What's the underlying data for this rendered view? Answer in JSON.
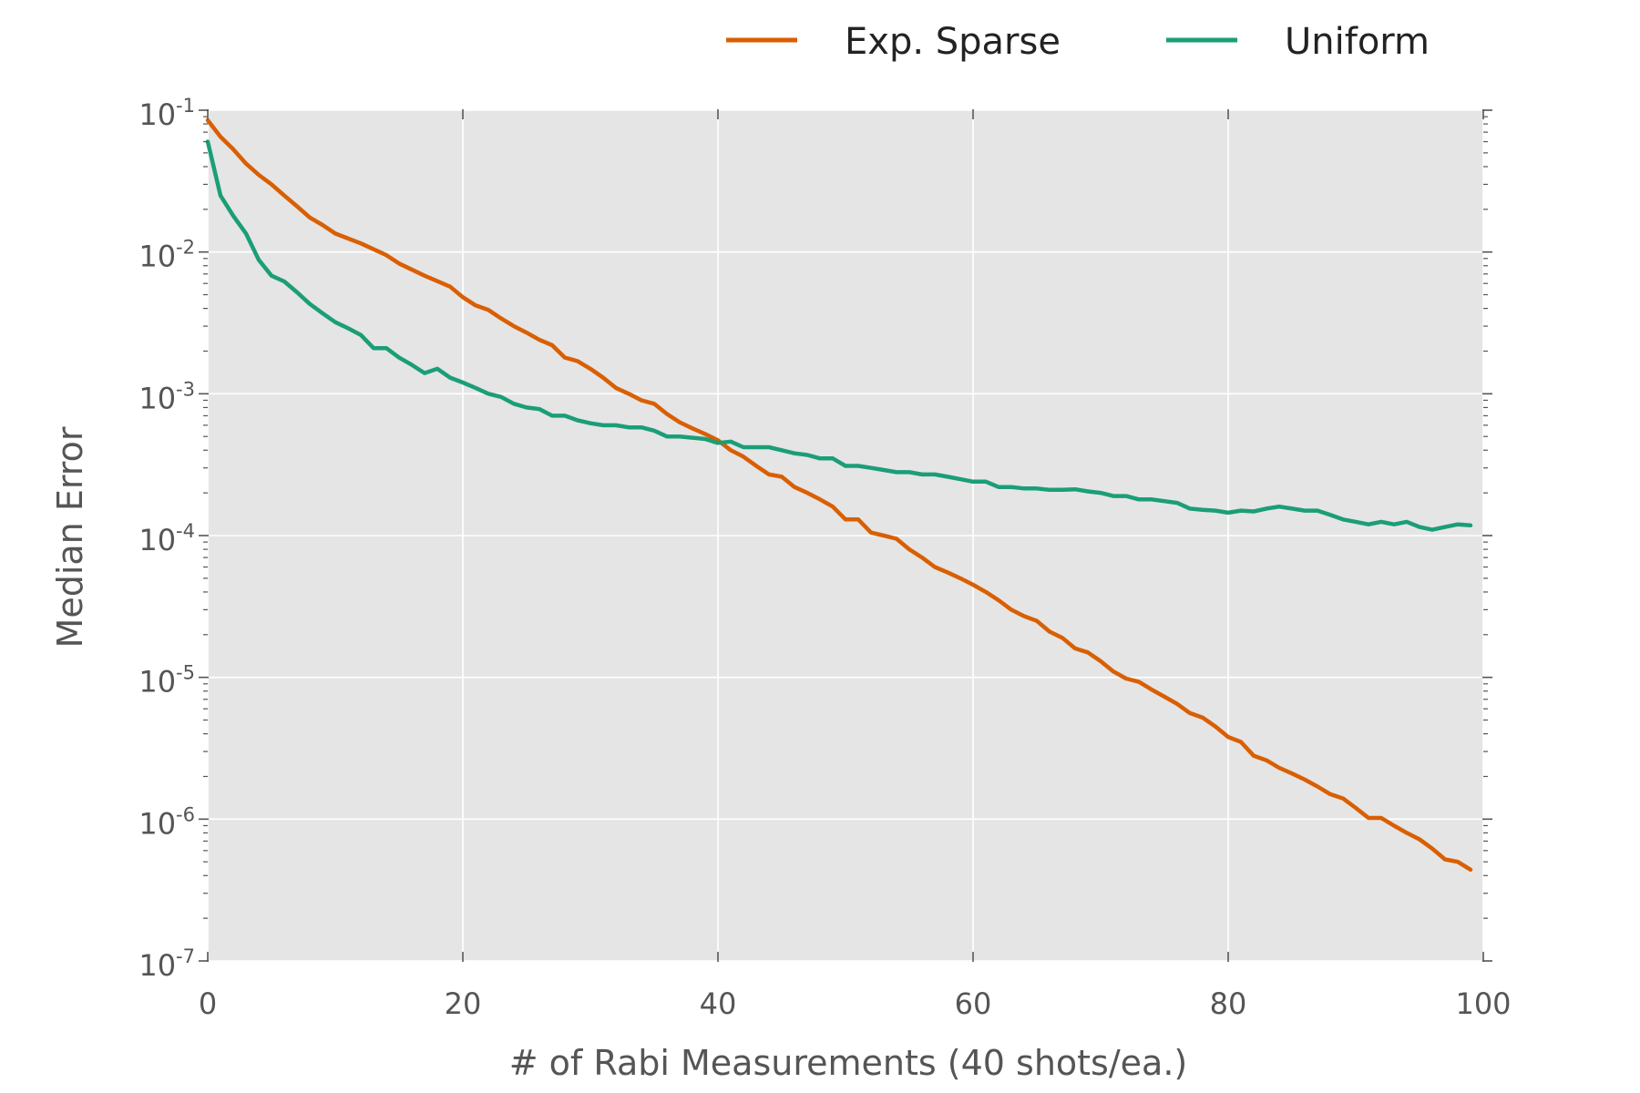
{
  "chart_data": {
    "type": "line",
    "title": "",
    "xlabel": "# of Rabi Measurements (40 shots/ea.)",
    "ylabel": "Median Error",
    "xlim": [
      0,
      100
    ],
    "ylim": [
      1e-07,
      0.1
    ],
    "yscale": "log",
    "grid": true,
    "legend_position": "top, above plot",
    "background_color": "#e5e5e5",
    "x_ticks": [
      0,
      20,
      40,
      60,
      80,
      100
    ],
    "y_ticks": [
      {
        "base": "10",
        "exp": "-1"
      },
      {
        "base": "10",
        "exp": "-2"
      },
      {
        "base": "10",
        "exp": "-3"
      },
      {
        "base": "10",
        "exp": "-4"
      },
      {
        "base": "10",
        "exp": "-5"
      },
      {
        "base": "10",
        "exp": "-6"
      },
      {
        "base": "10",
        "exp": "-7"
      }
    ],
    "series": [
      {
        "name": "Exp. Sparse",
        "color": "#d95f02",
        "x": [
          0,
          1,
          2,
          3,
          4,
          5,
          6,
          7,
          8,
          9,
          10,
          12,
          14,
          15,
          17,
          19,
          20,
          21,
          22,
          23,
          24,
          25,
          26,
          27,
          28,
          29,
          30,
          31,
          32,
          33,
          34,
          35,
          36,
          37,
          38,
          39,
          40,
          41,
          42,
          43,
          44,
          45,
          46,
          47,
          48,
          49,
          50,
          51,
          52,
          53,
          54,
          55,
          56,
          57,
          58,
          59,
          60,
          61,
          62,
          63,
          64,
          65,
          66,
          67,
          68,
          69,
          70,
          71,
          72,
          73,
          74,
          75,
          76,
          77,
          78,
          79,
          80,
          81,
          82,
          83,
          84,
          85,
          86,
          87,
          88,
          89,
          90,
          91,
          92,
          93,
          94,
          95,
          96,
          97,
          98,
          99
        ],
        "y": [
          0.085,
          0.065,
          0.053,
          0.042,
          0.035,
          0.03,
          0.025,
          0.021,
          0.0175,
          0.0155,
          0.0135,
          0.0115,
          0.0095,
          0.0083,
          0.0068,
          0.0057,
          0.0048,
          0.0042,
          0.0039,
          0.0034,
          0.003,
          0.0027,
          0.0024,
          0.0022,
          0.0018,
          0.0017,
          0.0015,
          0.0013,
          0.0011,
          0.001,
          0.0009,
          0.00085,
          0.00072,
          0.00063,
          0.00057,
          0.00052,
          0.00047,
          0.0004,
          0.00036,
          0.00031,
          0.00027,
          0.00026,
          0.00022,
          0.0002,
          0.00018,
          0.00016,
          0.00013,
          0.00013,
          0.000105,
          0.0001,
          9.5e-05,
          8e-05,
          7e-05,
          6e-05,
          5.5e-05,
          5e-05,
          4.5e-05,
          4e-05,
          3.5e-05,
          3e-05,
          2.7e-05,
          2.5e-05,
          2.1e-05,
          1.9e-05,
          1.6e-05,
          1.5e-05,
          1.3e-05,
          1.1e-05,
          9.8e-06,
          9.3e-06,
          8.2e-06,
          7.3e-06,
          6.5e-06,
          5.6e-06,
          5.2e-06,
          4.5e-06,
          3.8e-06,
          3.5e-06,
          2.8e-06,
          2.6e-06,
          2.3e-06,
          2.1e-06,
          1.9e-06,
          1.7e-06,
          1.5e-06,
          1.4e-06,
          1.2e-06,
          1.02e-06,
          1.02e-06,
          9e-07,
          8e-07,
          7.2e-07,
          6.2e-07,
          5.2e-07,
          5e-07,
          4.4e-07
        ]
      },
      {
        "name": "Uniform",
        "color": "#1b9e77",
        "x": [
          0,
          1,
          2,
          3,
          4,
          5,
          6,
          7,
          8,
          9,
          10,
          11,
          12,
          13,
          14,
          15,
          16,
          17,
          18,
          19,
          20,
          21,
          22,
          23,
          24,
          25,
          26,
          27,
          28,
          29,
          30,
          31,
          32,
          33,
          34,
          35,
          36,
          37,
          38,
          39,
          40,
          41,
          42,
          43,
          44,
          45,
          46,
          47,
          48,
          49,
          50,
          51,
          52,
          53,
          54,
          55,
          56,
          57,
          58,
          59,
          60,
          61,
          62,
          63,
          64,
          65,
          66,
          67,
          68,
          69,
          70,
          71,
          72,
          73,
          74,
          75,
          76,
          77,
          78,
          79,
          80,
          81,
          82,
          83,
          84,
          85,
          86,
          87,
          88,
          89,
          90,
          91,
          92,
          93,
          94,
          95,
          96,
          97,
          98,
          99
        ],
        "y": [
          0.06,
          0.025,
          0.018,
          0.0135,
          0.0088,
          0.0068,
          0.0062,
          0.0052,
          0.0043,
          0.0037,
          0.0032,
          0.0029,
          0.0026,
          0.0021,
          0.0021,
          0.0018,
          0.0016,
          0.0014,
          0.0015,
          0.0013,
          0.0012,
          0.0011,
          0.001,
          0.00095,
          0.00085,
          0.0008,
          0.00078,
          0.0007,
          0.0007,
          0.00065,
          0.00062,
          0.0006,
          0.0006,
          0.00058,
          0.00058,
          0.00055,
          0.0005,
          0.0005,
          0.00049,
          0.00048,
          0.00045,
          0.00046,
          0.00042,
          0.00042,
          0.00042,
          0.0004,
          0.00038,
          0.00037,
          0.00035,
          0.00035,
          0.00031,
          0.00031,
          0.0003,
          0.00029,
          0.00028,
          0.00028,
          0.00027,
          0.00027,
          0.00026,
          0.00025,
          0.00024,
          0.00024,
          0.00022,
          0.00022,
          0.000215,
          0.000215,
          0.00021,
          0.00021,
          0.000212,
          0.000205,
          0.0002,
          0.00019,
          0.00019,
          0.00018,
          0.00018,
          0.000175,
          0.00017,
          0.000155,
          0.000152,
          0.00015,
          0.000145,
          0.00015,
          0.000148,
          0.000155,
          0.00016,
          0.000155,
          0.00015,
          0.00015,
          0.00014,
          0.00013,
          0.000125,
          0.00012,
          0.000125,
          0.00012,
          0.000125,
          0.000115,
          0.00011,
          0.000115,
          0.00012,
          0.000118
        ]
      }
    ]
  }
}
